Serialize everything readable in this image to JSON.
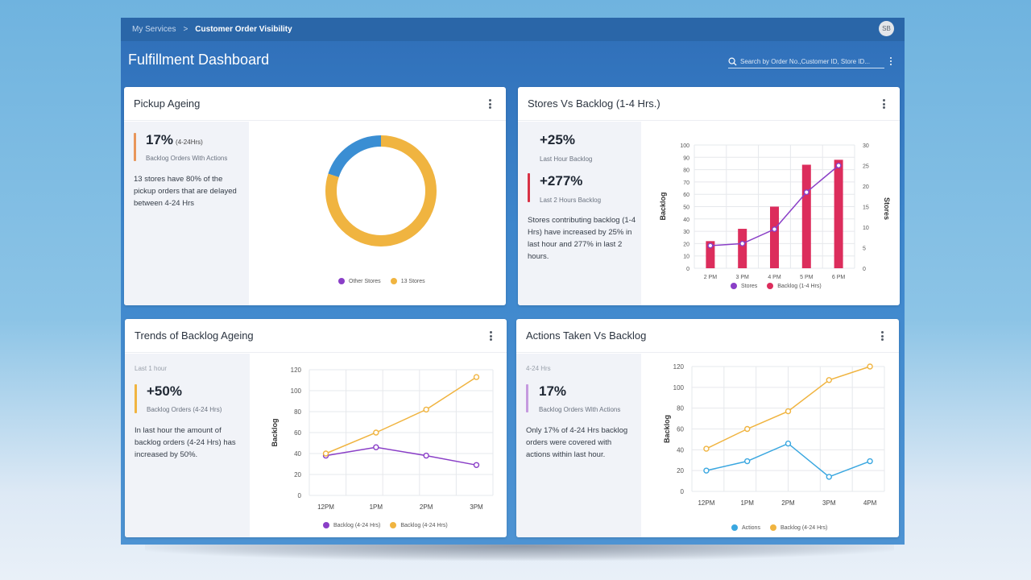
{
  "breadcrumb": {
    "parent": "My Services",
    "separator": ">",
    "current": "Customer Order Visibility"
  },
  "user": {
    "initials": "SB"
  },
  "page": {
    "title": "Fulfillment Dashboard"
  },
  "search": {
    "placeholder": "Search by Order No.,Customer ID, Store ID..."
  },
  "colors": {
    "orange": "#f0b440",
    "purple": "#8a3fc7",
    "blue": "#3a8ed3",
    "red": "#dc2d5c",
    "cyan": "#3aa7e0"
  },
  "pickup_ageing": {
    "title": "Pickup Ageing",
    "stat": "17%",
    "stat_tag": "(4-24Hrs)",
    "sub": "Backlog Orders With Actions",
    "desc": "13 stores have 80% of the pickup orders that are delayed between 4-24 Hrs",
    "legend": [
      "Other Stores",
      "13 Stores"
    ]
  },
  "stores_backlog": {
    "title": "Stores Vs Backlog (1-4 Hrs.)",
    "stat1": "+25%",
    "sub1": "Last Hour Backlog",
    "stat2": "+277%",
    "sub2": "Last 2 Hours Backlog",
    "desc": "Stores contributing backlog (1-4 Hrs) have increased by 25% in last hour and 277% in last 2 hours.",
    "ylabel_left": "Backlog",
    "ylabel_right": "Stores",
    "legend": [
      "Stores",
      "Backlog (1-4 Hrs)"
    ]
  },
  "trends": {
    "title": "Trends of Backlog Ageing",
    "period": "Last 1 hour",
    "stat": "+50%",
    "sub": "Backlog Orders (4-24 Hrs)",
    "desc": "In last hour the amount of backlog orders (4-24 Hrs) has increased by 50%.",
    "ylabel": "Backlog",
    "legend": [
      "Backlog (4-24 Hrs)",
      "Backlog (4-24 Hrs)"
    ]
  },
  "actions": {
    "title": "Actions Taken Vs Backlog",
    "period": "4-24 Hrs",
    "stat": "17%",
    "sub": "Backlog Orders With Actions",
    "desc": "Only 17% of 4-24 Hrs backlog orders were covered with actions within last hour.",
    "ylabel": "Backlog",
    "legend": [
      "Actions",
      "Backlog (4-24 Hrs)"
    ]
  },
  "chart_data": [
    {
      "type": "pie",
      "title": "Pickup Ageing",
      "categories": [
        "Other Stores",
        "13 Stores"
      ],
      "values": [
        20,
        80
      ]
    },
    {
      "type": "bar",
      "title": "Stores Vs Backlog (1-4 Hrs.)",
      "categories": [
        "2 PM",
        "3 PM",
        "4 PM",
        "5 PM",
        "6 PM"
      ],
      "y_ticks_left": [
        "0",
        "10",
        "20",
        "30",
        "40",
        "50",
        "60",
        "70",
        "80",
        "90",
        "100"
      ],
      "y_ticks_right": [
        "0",
        "5",
        "10",
        "15",
        "20",
        "25",
        "30"
      ],
      "ylim": [
        0,
        100
      ],
      "ylim_right": [
        0,
        30
      ],
      "series": [
        {
          "name": "Backlog (1-4 Hrs)",
          "type": "bar",
          "values": [
            22,
            32,
            50,
            84,
            88
          ]
        },
        {
          "name": "Stores",
          "type": "line",
          "axis": "right",
          "values": [
            5.5,
            6,
            9.5,
            18.5,
            25
          ]
        }
      ]
    },
    {
      "type": "line",
      "title": "Trends of Backlog Ageing",
      "categories": [
        "12PM",
        "1PM",
        "2PM",
        "3PM"
      ],
      "y_ticks": [
        "0",
        "20",
        "40",
        "60",
        "80",
        "100",
        "120"
      ],
      "ylim": [
        0,
        120
      ],
      "series": [
        {
          "name": "Backlog (4-24 Hrs)",
          "color": "#8a3fc7",
          "values": [
            38,
            46,
            38,
            29
          ]
        },
        {
          "name": "Backlog (4-24 Hrs)",
          "color": "#f0b440",
          "values": [
            40,
            60,
            82,
            113
          ]
        }
      ]
    },
    {
      "type": "line",
      "title": "Actions Taken Vs Backlog",
      "categories": [
        "12PM",
        "1PM",
        "2PM",
        "3PM",
        "4PM"
      ],
      "y_ticks": [
        "0",
        "20",
        "40",
        "60",
        "80",
        "100",
        "120"
      ],
      "ylim": [
        0,
        120
      ],
      "series": [
        {
          "name": "Actions",
          "color": "#3aa7e0",
          "values": [
            20,
            29,
            46,
            14,
            29
          ]
        },
        {
          "name": "Backlog (4-24 Hrs)",
          "color": "#f0b440",
          "values": [
            41,
            60,
            77,
            107,
            120
          ]
        }
      ]
    }
  ]
}
